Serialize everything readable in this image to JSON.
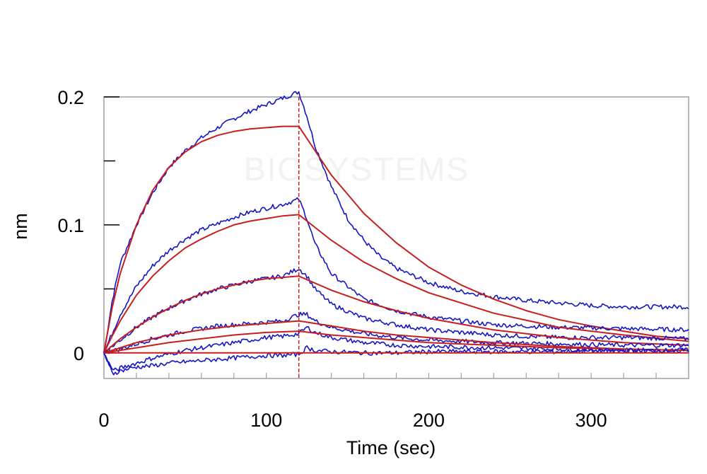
{
  "chart_data": {
    "type": "line",
    "xlabel": "Time (sec)",
    "ylabel": "nm",
    "xlim": [
      0,
      360
    ],
    "ylim": [
      -0.02,
      0.2
    ],
    "x_ticks": [
      0,
      100,
      200,
      300
    ],
    "y_ticks": [
      0,
      0.1,
      0.2
    ],
    "grid": false,
    "legend": "none",
    "association_end_marker": 120,
    "watermark": "BIOSYSTEMS",
    "colors": {
      "raw": "#1515c8",
      "fit": "#c81e1e",
      "marker": "#c81e1e"
    },
    "series": [
      {
        "kind": "raw",
        "x": [
          0,
          5,
          10,
          20,
          30,
          40,
          50,
          60,
          70,
          80,
          90,
          100,
          110,
          120,
          125,
          130,
          140,
          150,
          160,
          170,
          180,
          200,
          220,
          240,
          260,
          280,
          300,
          320,
          340,
          360
        ],
        "y": [
          0,
          0.04,
          0.07,
          0.1,
          0.125,
          0.145,
          0.158,
          0.168,
          0.176,
          0.183,
          0.189,
          0.194,
          0.199,
          0.204,
          0.185,
          0.162,
          0.13,
          0.105,
          0.088,
          0.075,
          0.066,
          0.055,
          0.048,
          0.044,
          0.041,
          0.039,
          0.037,
          0.036,
          0.036,
          0.036
        ]
      },
      {
        "kind": "fit",
        "x": [
          0,
          5,
          10,
          20,
          30,
          40,
          50,
          60,
          70,
          80,
          90,
          100,
          110,
          120,
          130,
          140,
          160,
          180,
          200,
          220,
          240,
          260,
          280,
          300,
          320,
          340,
          360
        ],
        "y": [
          0,
          0.035,
          0.062,
          0.1,
          0.127,
          0.145,
          0.157,
          0.165,
          0.17,
          0.173,
          0.175,
          0.176,
          0.177,
          0.177,
          0.158,
          0.139,
          0.109,
          0.086,
          0.067,
          0.053,
          0.042,
          0.033,
          0.026,
          0.021,
          0.017,
          0.013,
          0.011
        ]
      },
      {
        "kind": "raw",
        "x": [
          0,
          5,
          10,
          20,
          30,
          40,
          50,
          60,
          70,
          80,
          90,
          100,
          110,
          120,
          125,
          130,
          140,
          160,
          180,
          200,
          240,
          280,
          320,
          360
        ],
        "y": [
          0,
          0.015,
          0.03,
          0.052,
          0.068,
          0.08,
          0.089,
          0.096,
          0.101,
          0.106,
          0.11,
          0.113,
          0.116,
          0.12,
          0.105,
          0.085,
          0.062,
          0.042,
          0.033,
          0.028,
          0.022,
          0.02,
          0.019,
          0.018
        ]
      },
      {
        "kind": "fit",
        "x": [
          0,
          5,
          10,
          20,
          30,
          40,
          50,
          60,
          70,
          80,
          90,
          100,
          110,
          120,
          140,
          160,
          180,
          200,
          240,
          280,
          320,
          360
        ],
        "y": [
          0,
          0.013,
          0.025,
          0.045,
          0.06,
          0.072,
          0.082,
          0.089,
          0.095,
          0.1,
          0.103,
          0.105,
          0.107,
          0.108,
          0.088,
          0.071,
          0.058,
          0.047,
          0.031,
          0.02,
          0.014,
          0.009
        ]
      },
      {
        "kind": "raw",
        "x": [
          0,
          10,
          20,
          30,
          40,
          50,
          60,
          70,
          80,
          90,
          100,
          110,
          120,
          125,
          130,
          140,
          160,
          180,
          200,
          240,
          280,
          320,
          360
        ],
        "y": [
          0,
          0.01,
          0.02,
          0.028,
          0.035,
          0.041,
          0.046,
          0.05,
          0.053,
          0.056,
          0.058,
          0.06,
          0.066,
          0.06,
          0.05,
          0.038,
          0.027,
          0.022,
          0.018,
          0.014,
          0.012,
          0.012,
          0.011
        ]
      },
      {
        "kind": "fit",
        "x": [
          0,
          10,
          20,
          30,
          40,
          50,
          60,
          70,
          80,
          90,
          100,
          110,
          120,
          140,
          160,
          180,
          200,
          240,
          280,
          320,
          360
        ],
        "y": [
          0,
          0.011,
          0.02,
          0.028,
          0.035,
          0.041,
          0.046,
          0.05,
          0.053,
          0.056,
          0.058,
          0.059,
          0.06,
          0.049,
          0.04,
          0.033,
          0.027,
          0.018,
          0.012,
          0.008,
          0.006
        ]
      },
      {
        "kind": "raw",
        "x": [
          0,
          10,
          20,
          30,
          40,
          50,
          60,
          70,
          80,
          90,
          100,
          110,
          120,
          125,
          130,
          140,
          160,
          180,
          200,
          240,
          280,
          320,
          360
        ],
        "y": [
          0,
          0.003,
          0.007,
          0.011,
          0.014,
          0.017,
          0.019,
          0.021,
          0.022,
          0.023,
          0.024,
          0.025,
          0.03,
          0.03,
          0.025,
          0.02,
          0.015,
          0.012,
          0.01,
          0.008,
          0.007,
          0.006,
          0.006
        ]
      },
      {
        "kind": "fit",
        "x": [
          0,
          20,
          40,
          60,
          80,
          100,
          120,
          140,
          160,
          180,
          200,
          240,
          280,
          320,
          360
        ],
        "y": [
          0,
          0.008,
          0.014,
          0.018,
          0.021,
          0.023,
          0.025,
          0.021,
          0.017,
          0.014,
          0.012,
          0.008,
          0.005,
          0.003,
          0.002
        ]
      },
      {
        "kind": "raw",
        "x": [
          0,
          3,
          6,
          10,
          20,
          30,
          40,
          50,
          60,
          70,
          80,
          90,
          100,
          110,
          120,
          125,
          130,
          140,
          160,
          180,
          200,
          240,
          280,
          320,
          360
        ],
        "y": [
          0,
          -0.008,
          -0.014,
          -0.012,
          -0.008,
          -0.004,
          -0.001,
          0.002,
          0.004,
          0.006,
          0.008,
          0.01,
          0.012,
          0.013,
          0.015,
          0.02,
          0.016,
          0.012,
          0.008,
          0.006,
          0.005,
          0.004,
          0.003,
          0.002,
          0.002
        ]
      },
      {
        "kind": "fit",
        "x": [
          0,
          20,
          40,
          60,
          80,
          100,
          120,
          140,
          160,
          180,
          200,
          240,
          280,
          320,
          360
        ],
        "y": [
          0,
          0.004,
          0.008,
          0.011,
          0.014,
          0.016,
          0.017,
          0.014,
          0.012,
          0.01,
          0.008,
          0.006,
          0.004,
          0.003,
          0.002
        ]
      },
      {
        "kind": "raw",
        "x": [
          0,
          3,
          6,
          10,
          20,
          30,
          40,
          50,
          60,
          70,
          80,
          90,
          100,
          110,
          120,
          125,
          130,
          140,
          160,
          180,
          200,
          240,
          280,
          320,
          360
        ],
        "y": [
          0,
          -0.01,
          -0.016,
          -0.014,
          -0.011,
          -0.01,
          -0.008,
          -0.007,
          -0.006,
          -0.005,
          -0.004,
          -0.003,
          -0.002,
          -0.002,
          -0.001,
          0.004,
          0.002,
          0.001,
          0,
          0,
          0.001,
          0.001,
          0.001,
          0.002,
          0.002
        ]
      },
      {
        "kind": "fit",
        "x": [
          0,
          120,
          360
        ],
        "y": [
          0,
          0,
          0
        ]
      }
    ]
  }
}
